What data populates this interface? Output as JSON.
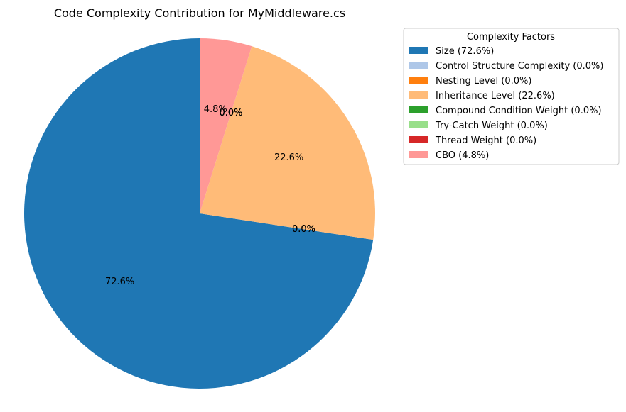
{
  "chart_data": {
    "type": "pie",
    "title": "Code Complexity Contribution for MyMiddleware.cs",
    "legend_title": "Complexity Factors",
    "legend_placement": "top-right, outside plot",
    "start_angle_deg": 90,
    "direction": "counterclockwise",
    "slices": [
      {
        "label": "Size",
        "legend": "Size (72.6%)",
        "value": 72.6,
        "pct_label": "72.6%",
        "color": "#1f77b4"
      },
      {
        "label": "Control Structure Complexity",
        "legend": "Control Structure Complexity (0.0%)",
        "value": 0.0,
        "pct_label": "0.0%",
        "color": "#aec7e8"
      },
      {
        "label": "Nesting Level",
        "legend": "Nesting Level (0.0%)",
        "value": 0.0,
        "pct_label": "0.0%",
        "color": "#ff7f0e"
      },
      {
        "label": "Inheritance Level",
        "legend": "Inheritance Level (22.6%)",
        "value": 22.6,
        "pct_label": "22.6%",
        "color": "#ffbb78"
      },
      {
        "label": "Compound Condition Weight",
        "legend": "Compound Condition Weight (0.0%)",
        "value": 0.0,
        "pct_label": "0.0%",
        "color": "#2ca02c"
      },
      {
        "label": "Try-Catch Weight",
        "legend": "Try-Catch Weight (0.0%)",
        "value": 0.0,
        "pct_label": "0.0%",
        "color": "#98df8a"
      },
      {
        "label": "Thread Weight",
        "legend": "Thread Weight (0.0%)",
        "value": 0.0,
        "pct_label": "0.0%",
        "color": "#d62728"
      },
      {
        "label": "CBO",
        "legend": "CBO (4.8%)",
        "value": 4.8,
        "pct_label": "4.8%",
        "color": "#ff9896"
      }
    ]
  }
}
